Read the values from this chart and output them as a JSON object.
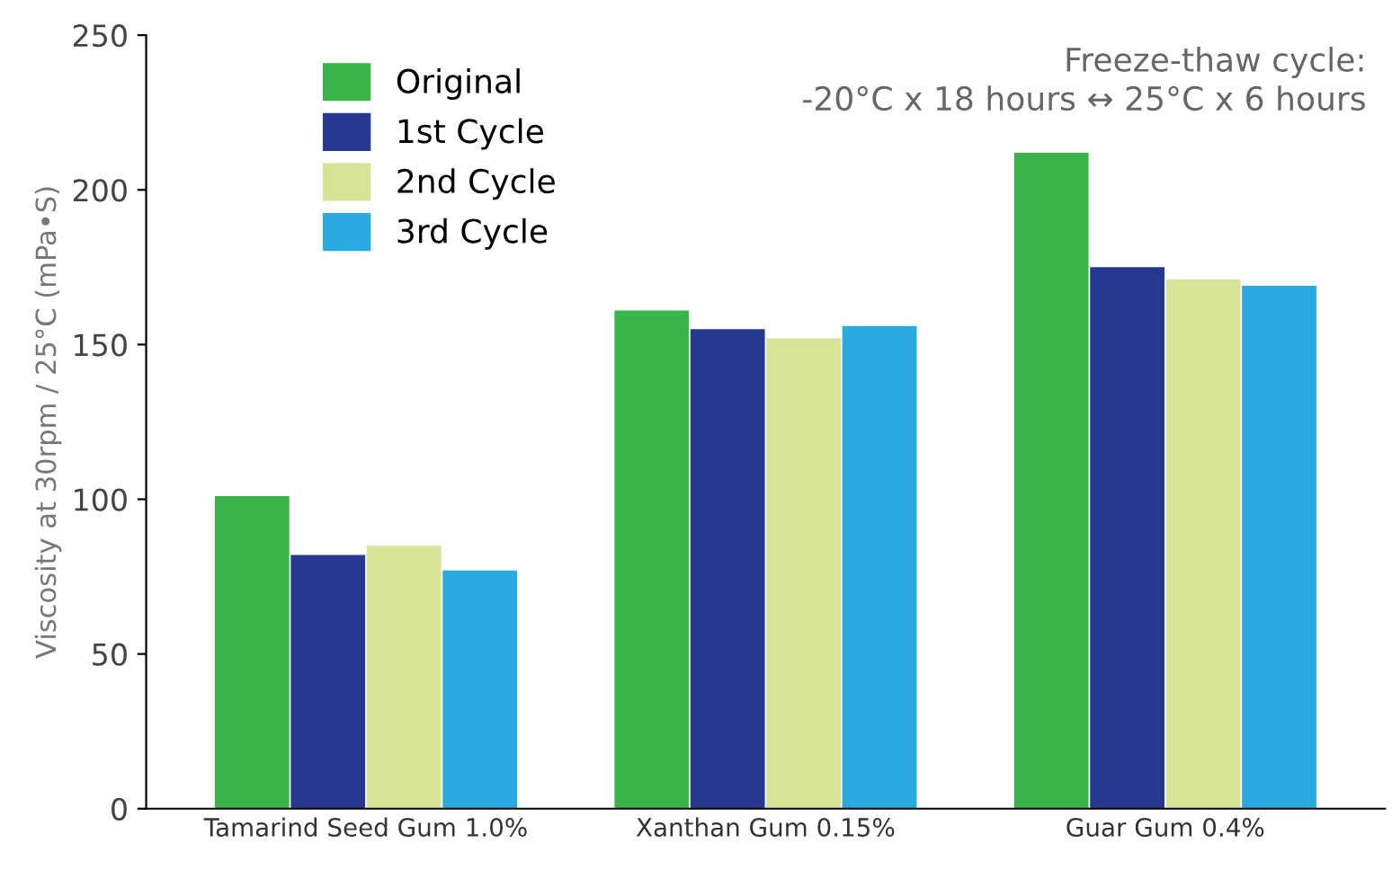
{
  "chart_data": {
    "type": "bar",
    "ylabel": "Viscosity at 30rpm / 25°C (mPa•S)",
    "categories": [
      "Tamarind Seed Gum 1.0%",
      "Xanthan Gum 0.15%",
      "Guar Gum 0.4%"
    ],
    "series": [
      {
        "name": "Original",
        "color": "#39b54a",
        "values": [
          101,
          161,
          212
        ]
      },
      {
        "name": "1st Cycle",
        "color": "#26388f",
        "values": [
          82,
          155,
          175
        ]
      },
      {
        "name": "2nd Cycle",
        "color": "#d7e397",
        "values": [
          85,
          152,
          171
        ]
      },
      {
        "name": "3rd Cycle",
        "color": "#29abe2",
        "values": [
          77,
          156,
          169
        ]
      }
    ],
    "ylim": [
      0,
      250
    ],
    "yticks": [
      0,
      50,
      100,
      150,
      200,
      250
    ],
    "annotations": [
      "Freeze-thaw cycle:\n-20°C x 18 hours ↔ 25°C x 6 hours"
    ],
    "legend": "top left",
    "grid": false
  }
}
